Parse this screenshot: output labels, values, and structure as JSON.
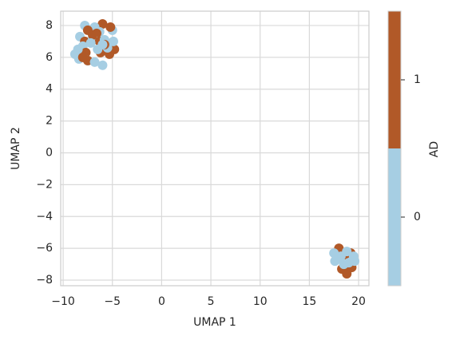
{
  "chart_data": {
    "type": "scatter",
    "x_label": "UMAP 1",
    "y_label": "UMAP 2",
    "xlim": [
      -10.25,
      21.05
    ],
    "ylim": [
      -8.35,
      8.9
    ],
    "xticks": [
      {
        "value": -10,
        "label": "−10"
      },
      {
        "value": -5,
        "label": "−5"
      },
      0,
      5,
      10,
      15,
      20
    ],
    "yticks": [
      {
        "value": -8,
        "label": "−8"
      },
      {
        "value": -6,
        "label": "−6"
      },
      {
        "value": -4,
        "label": "−4"
      },
      {
        "value": -2,
        "label": "−2"
      },
      0,
      2,
      4,
      6,
      8
    ],
    "grid": true,
    "points": {
      "x": [
        -7.8,
        -6.0,
        -6.8,
        -7.5,
        -6.3,
        -6.6,
        -5.0,
        -5.2,
        -8.3,
        -7.8,
        -7.0,
        -6.3,
        -5.8,
        -5.2,
        -5.1,
        -4.8,
        -4.9,
        -8.0,
        -7.7,
        -8.5,
        -6.2,
        -8.8,
        -5.3,
        -8.4,
        -7.5,
        -7.5,
        -8.0,
        -6.8,
        -6.0,
        -6.5,
        -7.0,
        -5.5,
        -5.8,
        -7.2,
        -6.0,
        18.0,
        17.5,
        18.6,
        17.6,
        19.2,
        18.2,
        18.3,
        18.8,
        18.8,
        19.5,
        19.3,
        19.6,
        18.6,
        18.5,
        19.0,
        17.9
      ],
      "y": [
        8.0,
        8.1,
        7.9,
        7.7,
        7.6,
        7.5,
        7.7,
        7.9,
        7.3,
        7.0,
        7.2,
        7.0,
        7.1,
        6.6,
        6.9,
        6.5,
        7.0,
        6.7,
        6.3,
        6.5,
        6.3,
        6.2,
        6.2,
        5.9,
        5.8,
        5.8,
        6.0,
        5.7,
        5.5,
        6.5,
        7.4,
        6.6,
        6.8,
        6.9,
        6.8,
        -6.0,
        -6.3,
        -6.4,
        -6.8,
        -6.3,
        -6.5,
        -7.3,
        -6.2,
        -7.6,
        -6.5,
        -7.2,
        -6.8,
        -7.1,
        -7.0,
        -6.9,
        -6.6
      ],
      "ad": [
        0,
        1,
        0,
        1,
        0,
        1,
        0,
        1,
        0,
        1,
        0,
        1,
        0,
        1,
        0,
        1,
        0,
        0,
        1,
        0,
        1,
        0,
        1,
        0,
        0,
        1,
        1,
        0,
        0,
        0,
        1,
        0,
        1,
        0,
        0,
        1,
        0,
        1,
        0,
        1,
        0,
        1,
        0,
        1,
        0,
        1,
        0,
        1,
        0,
        0,
        0
      ]
    },
    "colorbar": {
      "label": "AD",
      "lim": [
        -0.5,
        1.5
      ],
      "ticks": [
        0,
        1
      ],
      "colors": [
        "#a6cee3",
        "#b15928"
      ]
    }
  }
}
